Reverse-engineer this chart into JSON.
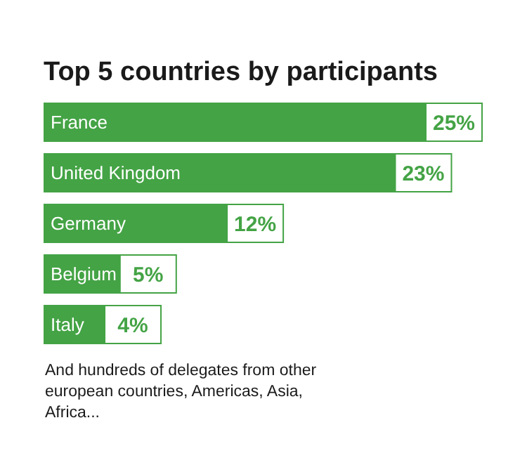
{
  "chart_data": {
    "type": "bar",
    "orientation": "horizontal",
    "title": "Top 5 countries by participants",
    "categories": [
      "France",
      "United Kingdom",
      "Germany",
      "Belgium",
      "Italy"
    ],
    "values": [
      25,
      23,
      12,
      5,
      4
    ],
    "value_labels": [
      "25%",
      "23%",
      "12%",
      "5%",
      "4%"
    ],
    "color": "#44a345",
    "annotations": [
      "And hundreds of delegates from other european countries, Americas, Asia, Africa..."
    ]
  }
}
